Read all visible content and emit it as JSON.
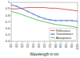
{
  "chart_data": {
    "type": "line",
    "x_label": "Wavelength in nm",
    "x": [
      400,
      450,
      500,
      550,
      600,
      650,
      700,
      750,
      800,
      850,
      900,
      950,
      1000
    ],
    "xlim": [
      400,
      1000
    ],
    "xticks": [
      400,
      450,
      500,
      550,
      600,
      650,
      700,
      750,
      800,
      850,
      900,
      950,
      1000
    ],
    "ylim": [
      0.4,
      1
    ],
    "yticks": [
      0.4,
      0.5,
      0.6,
      0.7,
      0.8,
      0.9,
      1
    ],
    "grid": false,
    "legend": "lower right",
    "series": [
      {
        "name": "Reflectance",
        "color": "#e03030",
        "line_style": "solid",
        "values": [
          0.9,
          0.9,
          0.91,
          0.92,
          0.92,
          0.92,
          0.92,
          0.91,
          0.91,
          0.9,
          0.89,
          0.88,
          0.87
        ]
      },
      {
        "name": "Transmittance",
        "color": "#3050d0",
        "line_style": "solid",
        "marker": "circle",
        "values": [
          0.96,
          0.94,
          0.9,
          0.86,
          0.82,
          0.78,
          0.75,
          0.73,
          0.72,
          0.72,
          0.72,
          0.72,
          0.71
        ]
      },
      {
        "name": "Absorptance",
        "color": "#40b040",
        "line_style": "solid",
        "values": [
          0.86,
          0.84,
          0.81,
          0.78,
          0.75,
          0.72,
          0.7,
          0.68,
          0.66,
          0.65,
          0.64,
          0.63,
          0.61
        ]
      }
    ]
  }
}
